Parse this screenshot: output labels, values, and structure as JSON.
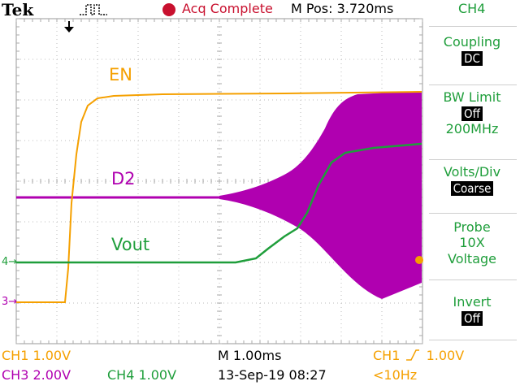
{
  "header": {
    "brand": "Tek",
    "trigger_icon": "trigger-pulse-icon",
    "acq_status": "Acq Complete",
    "m_pos": "M Pos: 3.720ms",
    "channel": "CH4"
  },
  "traces": {
    "en_label": "EN",
    "d2_label": "D2",
    "vout_label": "Vout"
  },
  "markers": {
    "ch4_marker": "4",
    "ch3_marker": "3"
  },
  "side_menu": {
    "coupling_label": "Coupling",
    "coupling_value": "DC",
    "bw_label": "BW Limit",
    "bw_value": "Off",
    "bw_freq": "200MHz",
    "volts_label": "Volts/Div",
    "volts_value": "Coarse",
    "probe_label": "Probe",
    "probe_atten": "10X",
    "probe_type": "Voltage",
    "invert_label": "Invert",
    "invert_value": "Off"
  },
  "footer": {
    "ch1_scale": "CH1  1.00V",
    "ch3_scale": "CH3  2.00V",
    "ch4_scale": "CH4  1.00V",
    "timebase": "M 1.00ms",
    "datetime": "13-Sep-19 08:27",
    "trigger_source": "CH1",
    "trigger_level": "1.00V",
    "trigger_freq": "<10Hz"
  },
  "colors": {
    "ch1": "#f5a000",
    "ch3": "#b000b0",
    "ch4": "#1f9e3b",
    "acq": "#c8102e"
  }
}
